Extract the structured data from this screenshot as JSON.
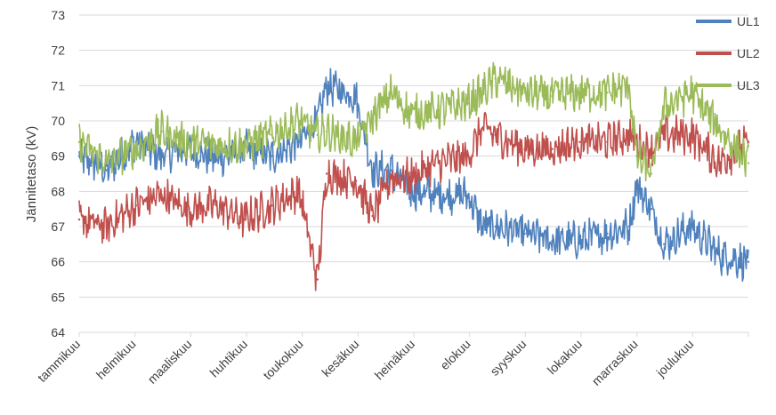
{
  "chart_data": {
    "type": "line",
    "title": "",
    "xlabel": "",
    "ylabel": "Jännitetaso (kV)",
    "ylim": [
      64,
      73
    ],
    "yticks": [
      64,
      65,
      66,
      67,
      68,
      69,
      70,
      71,
      72,
      73
    ],
    "grid": true,
    "legend_position": "top-right",
    "categories": [
      "tammikuu",
      "helmikuu",
      "maaliskuu",
      "huhtikuu",
      "toukokuu",
      "kesäkuu",
      "heinäkuu",
      "elokuu",
      "syyskuu",
      "lokakuu",
      "marraskuu",
      "joulukuu"
    ],
    "x": [
      0,
      15,
      31,
      45,
      59,
      75,
      90,
      105,
      120,
      130,
      135,
      151,
      160,
      170,
      181,
      196,
      212,
      220,
      227,
      243,
      258,
      273,
      288,
      300,
      304,
      312,
      319,
      334,
      349,
      365
    ],
    "series": [
      {
        "name": "UL1",
        "color": "#4f81bd",
        "values": [
          69.0,
          68.6,
          69.4,
          69.0,
          69.2,
          68.9,
          69.2,
          69.0,
          69.4,
          70.0,
          71.0,
          70.7,
          68.6,
          68.6,
          68.0,
          67.9,
          67.9,
          67.0,
          67.0,
          66.8,
          66.6,
          66.6,
          66.8,
          67.0,
          68.2,
          67.5,
          66.5,
          67.0,
          66.2,
          66.0
        ]
      },
      {
        "name": "UL2",
        "color": "#c0504d",
        "values": [
          67.2,
          67.0,
          67.6,
          67.9,
          67.5,
          67.6,
          67.2,
          67.6,
          68.0,
          65.5,
          68.5,
          68.3,
          67.3,
          68.4,
          68.4,
          68.8,
          69.0,
          69.8,
          69.6,
          69.2,
          69.2,
          69.4,
          69.4,
          69.6,
          69.4,
          69.2,
          69.6,
          69.6,
          68.8,
          69.4
        ]
      },
      {
        "name": "UL3",
        "color": "#9bbb59",
        "values": [
          69.4,
          68.8,
          69.2,
          69.7,
          69.4,
          69.3,
          69.3,
          69.6,
          70.0,
          69.6,
          69.7,
          69.4,
          70.1,
          70.8,
          70.2,
          70.3,
          70.5,
          70.8,
          71.2,
          70.8,
          70.7,
          70.8,
          70.8,
          71.0,
          69.0,
          68.5,
          70.4,
          70.8,
          69.8,
          68.8
        ]
      }
    ]
  }
}
